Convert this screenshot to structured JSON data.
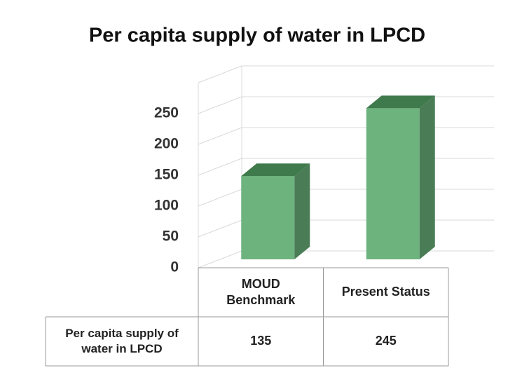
{
  "chart_data": {
    "type": "bar3d",
    "title": "Per capita supply of water in LPCD",
    "categories": [
      "MOUD Benchmark",
      "Present Status"
    ],
    "series": [
      {
        "name": "Per capita supply of water in LPCD",
        "color": "#6db37e",
        "values": [
          135,
          245
        ]
      }
    ],
    "ylim": [
      0,
      300
    ],
    "yticks": [
      0,
      50,
      100,
      150,
      200,
      250
    ],
    "grid": true,
    "data_table": true
  }
}
